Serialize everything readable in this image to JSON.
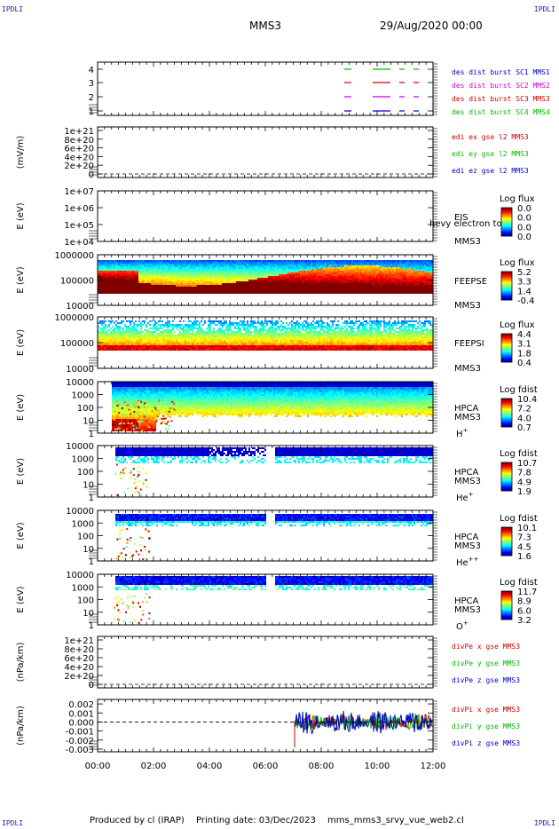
{
  "header": {
    "corner_tag": "IPDLI",
    "spacecraft": "MMS3",
    "date_time": "29/Aug/2020 00:00"
  },
  "footer": {
    "produced_by": "Produced by cl (IRAP)",
    "printing_date": "Printing date: 03/Dec/2023",
    "file_name": "mms_mms3_srvy_vue_web2.cl"
  },
  "time_axis": [
    "00:00",
    "02:00",
    "04:00",
    "06:00",
    "08:00",
    "10:00",
    "12:00"
  ],
  "colors": {
    "blue": "#0000cc",
    "magenta": "#cc00cc",
    "red": "#cc0000",
    "green": "#00bb00"
  },
  "chart_data": [
    {
      "type": "line",
      "id": "burst",
      "ytick_labels": [
        "4",
        "3",
        "2",
        "1"
      ],
      "legend": [
        {
          "text": "des dist burst SC1 MMS1",
          "color": "#0000cc"
        },
        {
          "text": "des dist burst SC2 MMS2",
          "color": "#cc00cc"
        },
        {
          "text": "des dist burst SC3 MMS3",
          "color": "#cc0000"
        },
        {
          "text": "des dist burst SC4 MMS4",
          "color": "#00bb00"
        }
      ],
      "grid": false
    },
    {
      "type": "line",
      "id": "edi",
      "ylabel": "(mV/m)",
      "ytick_labels": [
        "1e+21",
        "8e+20",
        "6e+20",
        "4e+20",
        "2e+20",
        "0"
      ],
      "ylim": [
        0,
        1e+21
      ],
      "legend": [
        {
          "text": "edi ex gse l2 MMS3",
          "color": "#cc0000"
        },
        {
          "text": "edi ey gse l2 MMS3",
          "color": "#00bb00"
        },
        {
          "text": "edi ez gse l2 MMS3",
          "color": "#0000cc"
        }
      ]
    },
    {
      "type": "heatmap",
      "id": "eis",
      "ylabel": "E (eV)",
      "ytick_labels": [
        "1e+07",
        "1e+06",
        "1e+05",
        "1e+04"
      ],
      "yscale": "log",
      "instrument": "EIS",
      "spacecraft": "MMS3",
      "overlay_text": "hevy electron to",
      "colorbar_title": "Log flux",
      "colorbar_ticks": [
        "0.0",
        "0.0",
        "0.0",
        "0.0"
      ]
    },
    {
      "type": "heatmap",
      "id": "feepse",
      "ylabel": "E (eV)",
      "ytick_labels": [
        "1000000",
        "100000",
        "10000"
      ],
      "yscale": "log",
      "instrument": "FEEPSE",
      "spacecraft": "MMS3",
      "colorbar_title": "Log flux",
      "colorbar_ticks": [
        "5.2",
        "3.3",
        "1.4",
        "-0.4"
      ]
    },
    {
      "type": "heatmap",
      "id": "feepsi",
      "ylabel": "E (eV)",
      "ytick_labels": [
        "1000000",
        "100000",
        "10000"
      ],
      "yscale": "log",
      "instrument": "FEEPSI",
      "spacecraft": "MMS3",
      "colorbar_title": "Log flux",
      "colorbar_ticks": [
        "4.4",
        "3.1",
        "1.8",
        "0.4"
      ]
    },
    {
      "type": "heatmap",
      "id": "hpca_h",
      "ylabel": "E (eV)",
      "ytick_labels": [
        "10000",
        "1000",
        "100",
        "10",
        "1"
      ],
      "yscale": "log",
      "instrument": "HPCA",
      "spacecraft": "MMS3",
      "species": "H",
      "species_sup": "+",
      "colorbar_title": "Log fdist",
      "colorbar_ticks": [
        "10.4",
        "7.2",
        "4.0",
        "0.7"
      ]
    },
    {
      "type": "heatmap",
      "id": "hpca_he",
      "ylabel": "E (eV)",
      "ytick_labels": [
        "10000",
        "1000",
        "100",
        "10",
        "1"
      ],
      "yscale": "log",
      "instrument": "HPCA",
      "spacecraft": "MMS3",
      "species": "He",
      "species_sup": "+",
      "colorbar_title": "Log fdist",
      "colorbar_ticks": [
        "10.7",
        "7.8",
        "4.9",
        "1.9"
      ]
    },
    {
      "type": "heatmap",
      "id": "hpca_hepp",
      "ylabel": "E (eV)",
      "ytick_labels": [
        "10000",
        "1000",
        "100",
        "10",
        "1"
      ],
      "yscale": "log",
      "instrument": "HPCA",
      "spacecraft": "MMS3",
      "species": "He",
      "species_sup": "++",
      "colorbar_title": "Log fdist",
      "colorbar_ticks": [
        "10.1",
        "7.3",
        "4.5",
        "1.6"
      ]
    },
    {
      "type": "heatmap",
      "id": "hpca_o",
      "ylabel": "E (eV)",
      "ytick_labels": [
        "10000",
        "1000",
        "100",
        "10",
        "1"
      ],
      "yscale": "log",
      "instrument": "HPCA",
      "spacecraft": "MMS3",
      "species": "O",
      "species_sup": "+",
      "colorbar_title": "Log fdist",
      "colorbar_ticks": [
        "11.7",
        "8.9",
        "6.0",
        "3.2"
      ]
    },
    {
      "type": "line",
      "id": "divpe",
      "ylabel": "(nPa/km)",
      "ytick_labels": [
        "1e+21",
        "8e+20",
        "6e+20",
        "4e+20",
        "2e+20",
        "0"
      ],
      "ylim": [
        0,
        1e+21
      ],
      "legend": [
        {
          "text": "divPe x gse MMS3",
          "color": "#cc0000"
        },
        {
          "text": "divPe y gse MMS3",
          "color": "#00bb00"
        },
        {
          "text": "divPe z gse MMS3",
          "color": "#0000cc"
        }
      ]
    },
    {
      "type": "line",
      "id": "divpi",
      "ylabel": "(nPa/km)",
      "ytick_labels": [
        "0.002",
        "0.001",
        "0.000",
        "-0.001",
        "-0.002",
        "-0.003"
      ],
      "ylim": [
        -0.0033,
        0.0025
      ],
      "legend": [
        {
          "text": "divPi x gse MMS3",
          "color": "#cc0000"
        },
        {
          "text": "divPi y gse MMS3",
          "color": "#00bb00"
        },
        {
          "text": "divPi z gse MMS3",
          "color": "#0000cc"
        }
      ]
    }
  ]
}
